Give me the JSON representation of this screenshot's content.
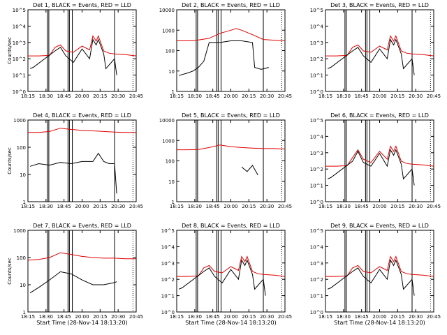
{
  "figure": {
    "time_ticks": [
      "18:15",
      "18:30",
      "18:45",
      "20:00",
      "20:15",
      "20:30",
      "20:45"
    ],
    "xlabel": "Start Time (28-Nov-14 18:13:20)",
    "ylabel": "Counts/sec",
    "event_color": "#000000",
    "lld_color": "#e00000"
  },
  "chart_data": [
    {
      "type": "line",
      "title": "Det 1, BLACK = Events, RED = LLD",
      "ylabel": "Counts/sec",
      "xlabel": "",
      "scale": "log",
      "ylim": [
        1,
        100000
      ],
      "yticks": [
        "10^0",
        "10^1",
        "10^2",
        "10^3",
        "10^4",
        "10^5"
      ],
      "series": [
        {
          "name": "LLD",
          "color": "#e00000",
          "x": [
            0,
            0.1,
            0.2,
            0.25,
            0.3,
            0.35,
            0.42,
            0.5,
            0.57,
            0.6,
            0.63,
            0.65,
            0.7,
            0.75,
            0.8,
            0.9,
            1
          ],
          "y": [
            150,
            150,
            160,
            500,
            700,
            300,
            250,
            600,
            350,
            2500,
            1200,
            2500,
            300,
            220,
            200,
            180,
            150
          ]
        },
        {
          "name": "Events",
          "color": "#000000",
          "x": [
            0.02,
            0.05,
            0.25,
            0.3,
            0.35,
            0.42,
            0.5,
            0.57,
            0.6,
            0.63,
            0.65,
            0.7,
            0.72,
            0.8,
            0.82
          ],
          "y": [
            25,
            30,
            300,
            500,
            150,
            60,
            400,
            100,
            1500,
            700,
            1500,
            200,
            25,
            100,
            10
          ]
        }
      ],
      "markers": [
        0.18,
        0.37,
        0.41,
        0.8,
        0.97
      ]
    },
    {
      "type": "line",
      "title": "Det 2, BLACK = Events, RED = LLD",
      "ylabel": "",
      "xlabel": "",
      "scale": "log",
      "ylim": [
        1,
        10000
      ],
      "yticks": [
        "1",
        "10",
        "100",
        "1000",
        "10000"
      ],
      "series": [
        {
          "name": "LLD",
          "color": "#e00000",
          "x": [
            0,
            0.15,
            0.3,
            0.4,
            0.5,
            0.55,
            0.6,
            0.7,
            0.8,
            1
          ],
          "y": [
            300,
            300,
            400,
            700,
            1000,
            1200,
            1000,
            600,
            350,
            300
          ]
        },
        {
          "name": "Events",
          "color": "#000000",
          "x": [
            0.02,
            0.1,
            0.15,
            0.2,
            0.25,
            0.3,
            0.4,
            0.5,
            0.6,
            0.7,
            0.72,
            0.78,
            0.85
          ],
          "y": [
            6,
            8,
            10,
            15,
            30,
            250,
            250,
            300,
            300,
            250,
            15,
            12,
            15
          ]
        }
      ],
      "markers": [
        0.18,
        0.37,
        0.41,
        0.8,
        0.97
      ]
    },
    {
      "type": "line",
      "title": "Det 3, BLACK = Events, RED = LLD",
      "ylabel": "",
      "xlabel": "",
      "scale": "log",
      "ylim": [
        1,
        100000
      ],
      "yticks": [
        "10^0",
        "10^1",
        "10^2",
        "10^3",
        "10^4",
        "10^5"
      ],
      "series": [
        {
          "name": "LLD",
          "color": "#e00000",
          "x": [
            0,
            0.1,
            0.2,
            0.25,
            0.3,
            0.35,
            0.42,
            0.5,
            0.57,
            0.6,
            0.63,
            0.65,
            0.7,
            0.75,
            0.8,
            0.9,
            1
          ],
          "y": [
            150,
            150,
            160,
            500,
            700,
            300,
            250,
            600,
            350,
            2500,
            1200,
            2500,
            300,
            220,
            200,
            180,
            150
          ]
        },
        {
          "name": "Events",
          "color": "#000000",
          "x": [
            0.02,
            0.05,
            0.25,
            0.3,
            0.35,
            0.42,
            0.5,
            0.57,
            0.6,
            0.63,
            0.65,
            0.7,
            0.72,
            0.8,
            0.82
          ],
          "y": [
            25,
            30,
            300,
            500,
            150,
            60,
            400,
            100,
            1500,
            700,
            1500,
            200,
            25,
            100,
            10
          ]
        }
      ],
      "markers": [
        0.18,
        0.37,
        0.41,
        0.8,
        0.97
      ]
    },
    {
      "type": "line",
      "title": "Det 4, BLACK = Events, RED = LLD",
      "ylabel": "Counts/sec",
      "xlabel": "",
      "scale": "log",
      "ylim": [
        1,
        1000
      ],
      "yticks": [
        "1",
        "10",
        "100",
        "1000"
      ],
      "series": [
        {
          "name": "LLD",
          "color": "#e00000",
          "x": [
            0,
            0.1,
            0.2,
            0.3,
            0.4,
            0.5,
            0.6,
            0.7,
            0.8,
            0.9,
            1
          ],
          "y": [
            350,
            350,
            380,
            500,
            450,
            420,
            400,
            380,
            360,
            350,
            350
          ]
        },
        {
          "name": "Events",
          "color": "#000000",
          "x": [
            0.02,
            0.1,
            0.2,
            0.3,
            0.4,
            0.5,
            0.6,
            0.65,
            0.7,
            0.75,
            0.8,
            0.82
          ],
          "y": [
            20,
            25,
            22,
            28,
            25,
            30,
            30,
            60,
            30,
            25,
            25,
            2
          ]
        }
      ],
      "markers": [
        0.18,
        0.37,
        0.41,
        0.8,
        0.97
      ]
    },
    {
      "type": "line",
      "title": "Det 5, BLACK = Events, RED = LLD",
      "ylabel": "",
      "xlabel": "",
      "scale": "log",
      "ylim": [
        1,
        10000
      ],
      "yticks": [
        "1",
        "10",
        "100",
        "1000",
        "10000"
      ],
      "series": [
        {
          "name": "LLD",
          "color": "#e00000",
          "x": [
            0,
            0.1,
            0.2,
            0.3,
            0.4,
            0.5,
            0.6,
            0.7,
            0.8,
            0.9,
            1
          ],
          "y": [
            350,
            350,
            360,
            450,
            600,
            500,
            450,
            420,
            400,
            400,
            380
          ]
        },
        {
          "name": "Events",
          "color": "#000000",
          "x": [
            0.6,
            0.65,
            0.7,
            0.75
          ],
          "y": [
            50,
            30,
            60,
            20
          ]
        }
      ],
      "markers": [
        0.18,
        0.37,
        0.41,
        0.8,
        0.97
      ]
    },
    {
      "type": "line",
      "title": "Det 6, BLACK = Events, RED = LLD",
      "ylabel": "",
      "xlabel": "",
      "scale": "log",
      "ylim": [
        1,
        100000
      ],
      "yticks": [
        "10^0",
        "10^1",
        "10^2",
        "10^3",
        "10^4",
        "10^5"
      ],
      "series": [
        {
          "name": "LLD",
          "color": "#e00000",
          "x": [
            0,
            0.1,
            0.2,
            0.25,
            0.3,
            0.35,
            0.42,
            0.5,
            0.57,
            0.6,
            0.63,
            0.65,
            0.7,
            0.75,
            0.8,
            0.9,
            1
          ],
          "y": [
            150,
            150,
            160,
            500,
            1500,
            400,
            250,
            1200,
            400,
            2500,
            1200,
            2500,
            300,
            220,
            200,
            180,
            150
          ]
        },
        {
          "name": "Events",
          "color": "#000000",
          "x": [
            0.02,
            0.05,
            0.25,
            0.3,
            0.35,
            0.42,
            0.5,
            0.57,
            0.6,
            0.63,
            0.65,
            0.7,
            0.72,
            0.8,
            0.82
          ],
          "y": [
            25,
            30,
            300,
            1200,
            250,
            150,
            900,
            150,
            1500,
            700,
            1500,
            200,
            25,
            100,
            10
          ]
        }
      ],
      "markers": [
        0.18,
        0.37,
        0.41,
        0.8,
        0.97
      ]
    },
    {
      "type": "line",
      "title": "Det 7, BLACK = Events, RED = LLD",
      "ylabel": "Counts/sec",
      "xlabel": "Start Time (28-Nov-14 18:13:20)",
      "scale": "log",
      "ylim": [
        1,
        1000
      ],
      "yticks": [
        "1",
        "10",
        "100",
        "1000"
      ],
      "series": [
        {
          "name": "LLD",
          "color": "#e00000",
          "x": [
            0,
            0.1,
            0.2,
            0.3,
            0.4,
            0.5,
            0.6,
            0.7,
            0.8,
            0.9,
            1
          ],
          "y": [
            80,
            85,
            100,
            150,
            130,
            110,
            100,
            95,
            95,
            90,
            90
          ]
        },
        {
          "name": "Events",
          "color": "#000000",
          "x": [
            0.02,
            0.1,
            0.2,
            0.3,
            0.4,
            0.5,
            0.6,
            0.7,
            0.8,
            0.82
          ],
          "y": [
            5,
            8,
            15,
            30,
            25,
            15,
            10,
            10,
            12,
            13
          ]
        }
      ],
      "markers": [
        0.18,
        0.37,
        0.41,
        0.8,
        0.97
      ]
    },
    {
      "type": "line",
      "title": "Det 8, BLACK = Events, RED = LLD",
      "ylabel": "",
      "xlabel": "Start Time (28-Nov-14 18:13:20)",
      "scale": "log",
      "ylim": [
        1,
        100000
      ],
      "yticks": [
        "10^0",
        "10^1",
        "10^2",
        "10^3",
        "10^4",
        "10^5"
      ],
      "series": [
        {
          "name": "LLD",
          "color": "#e00000",
          "x": [
            0,
            0.1,
            0.2,
            0.25,
            0.3,
            0.35,
            0.42,
            0.5,
            0.57,
            0.6,
            0.63,
            0.65,
            0.7,
            0.75,
            0.8,
            0.9,
            1
          ],
          "y": [
            150,
            150,
            160,
            500,
            700,
            300,
            250,
            600,
            350,
            2500,
            1200,
            2500,
            300,
            220,
            200,
            180,
            150
          ]
        },
        {
          "name": "Events",
          "color": "#000000",
          "x": [
            0.02,
            0.05,
            0.25,
            0.3,
            0.35,
            0.42,
            0.5,
            0.57,
            0.6,
            0.63,
            0.65,
            0.7,
            0.72,
            0.8,
            0.82
          ],
          "y": [
            25,
            30,
            300,
            500,
            150,
            60,
            400,
            100,
            1500,
            700,
            1500,
            200,
            25,
            100,
            10
          ]
        }
      ],
      "markers": [
        0.18,
        0.37,
        0.41,
        0.8,
        0.97
      ]
    },
    {
      "type": "line",
      "title": "Det 9, BLACK = Events, RED = LLD",
      "ylabel": "",
      "xlabel": "Start Time (28-Nov-14 18:13:20)",
      "scale": "log",
      "ylim": [
        1,
        100000
      ],
      "yticks": [
        "10^0",
        "10^1",
        "10^2",
        "10^3",
        "10^4",
        "10^5"
      ],
      "series": [
        {
          "name": "LLD",
          "color": "#e00000",
          "x": [
            0,
            0.1,
            0.2,
            0.25,
            0.3,
            0.35,
            0.42,
            0.5,
            0.57,
            0.6,
            0.63,
            0.65,
            0.7,
            0.75,
            0.8,
            0.9,
            1
          ],
          "y": [
            150,
            150,
            160,
            500,
            700,
            300,
            250,
            600,
            350,
            2500,
            1200,
            2500,
            300,
            220,
            200,
            180,
            150
          ]
        },
        {
          "name": "Events",
          "color": "#000000",
          "x": [
            0.02,
            0.05,
            0.25,
            0.3,
            0.35,
            0.42,
            0.5,
            0.57,
            0.6,
            0.63,
            0.65,
            0.7,
            0.72,
            0.8,
            0.82
          ],
          "y": [
            25,
            30,
            300,
            500,
            150,
            60,
            400,
            100,
            1500,
            700,
            1500,
            200,
            25,
            100,
            10
          ]
        }
      ],
      "markers": [
        0.18,
        0.37,
        0.41,
        0.8,
        0.97
      ]
    }
  ]
}
